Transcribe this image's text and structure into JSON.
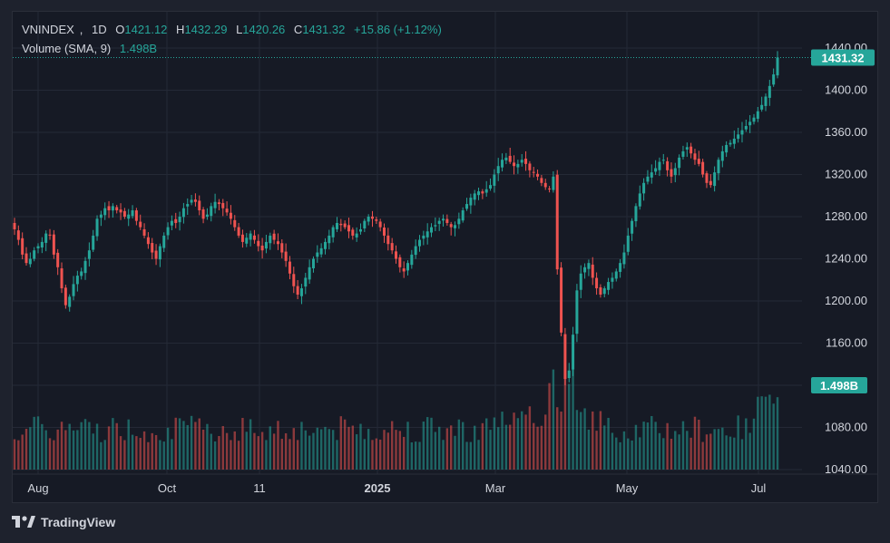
{
  "legend": {
    "symbol": "VNINDEX",
    "interval": "1D",
    "open_label": "O",
    "open": "1421.12",
    "high_label": "H",
    "high": "1432.29",
    "low_label": "L",
    "low": "1420.26",
    "close_label": "C",
    "close": "1431.32",
    "change": "+15.86 (+1.12%)",
    "volume_label": "Volume (SMA, 9)",
    "volume_value": "1.498B"
  },
  "branding": {
    "name": "TradingView"
  },
  "colors": {
    "up": "#26a69a",
    "down": "#ef5350",
    "background": "#161a25",
    "grid": "#242936",
    "text": "#d1d4dc"
  },
  "chart_data": {
    "type": "candlestick",
    "y_axis": {
      "min": 1040,
      "max": 1440,
      "ticks": [
        "1440.00",
        "1400.00",
        "1360.00",
        "1320.00",
        "1280.00",
        "1240.00",
        "1200.00",
        "1160.00",
        "1120.00",
        "1080.00",
        "1040.00"
      ]
    },
    "x_axis": {
      "ticks": [
        "Aug",
        "Oct",
        "11",
        "2025",
        "Mar",
        "May",
        "Jul"
      ]
    },
    "last_price_label": "1431.32",
    "last_volume_label": "1.498B",
    "closes": [
      1268,
      1258,
      1244,
      1236,
      1240,
      1248,
      1252,
      1256,
      1264,
      1262,
      1244,
      1232,
      1212,
      1196,
      1204,
      1216,
      1224,
      1228,
      1238,
      1248,
      1262,
      1278,
      1282,
      1288,
      1286,
      1290,
      1286,
      1284,
      1280,
      1282,
      1286,
      1276,
      1270,
      1262,
      1254,
      1246,
      1240,
      1252,
      1262,
      1270,
      1276,
      1274,
      1280,
      1288,
      1292,
      1296,
      1294,
      1286,
      1278,
      1282,
      1290,
      1294,
      1292,
      1288,
      1284,
      1278,
      1270,
      1262,
      1256,
      1260,
      1264,
      1258,
      1252,
      1248,
      1256,
      1262,
      1258,
      1254,
      1246,
      1238,
      1226,
      1214,
      1206,
      1212,
      1222,
      1232,
      1240,
      1246,
      1250,
      1256,
      1262,
      1270,
      1274,
      1272,
      1270,
      1266,
      1262,
      1264,
      1268,
      1276,
      1280,
      1278,
      1276,
      1270,
      1262,
      1254,
      1248,
      1240,
      1232,
      1228,
      1236,
      1244,
      1252,
      1258,
      1262,
      1266,
      1270,
      1272,
      1276,
      1278,
      1274,
      1270,
      1272,
      1278,
      1286,
      1292,
      1298,
      1302,
      1304,
      1302,
      1306,
      1310,
      1320,
      1328,
      1334,
      1336,
      1332,
      1328,
      1330,
      1334,
      1330,
      1324,
      1322,
      1318,
      1312,
      1308,
      1306,
      1318,
      1230,
      1170,
      1126,
      1134,
      1168,
      1210,
      1226,
      1232,
      1236,
      1222,
      1212,
      1206,
      1212,
      1218,
      1222,
      1228,
      1236,
      1246,
      1262,
      1276,
      1290,
      1302,
      1312,
      1318,
      1322,
      1326,
      1332,
      1334,
      1324,
      1318,
      1326,
      1336,
      1342,
      1346,
      1340,
      1334,
      1330,
      1320,
      1312,
      1310,
      1322,
      1334,
      1342,
      1348,
      1350,
      1354,
      1358,
      1362,
      1366,
      1370,
      1374,
      1380,
      1386,
      1394,
      1404,
      1415,
      1431
    ]
  }
}
